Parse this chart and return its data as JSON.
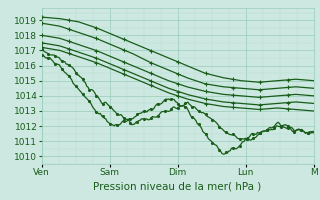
{
  "background_color": "#cce8e0",
  "plot_bg_color": "#cce8e0",
  "grid_major_color": "#99ccbb",
  "grid_minor_color": "#b8ddd4",
  "line_color": "#1a5c1a",
  "ylim": [
    1009.5,
    1019.8
  ],
  "yticks": [
    1010,
    1011,
    1012,
    1013,
    1014,
    1015,
    1016,
    1017,
    1018,
    1019
  ],
  "xlabel": "Pression niveau de la mer( hPa )",
  "xlabel_fontsize": 7.5,
  "tick_fontsize": 6.5,
  "day_labels": [
    "Ven",
    "Sam",
    "Dim",
    "Lun",
    "M"
  ],
  "day_positions": [
    0,
    0.25,
    0.5,
    0.75,
    1.0
  ],
  "series": [
    {
      "y": [
        1019.2,
        1019.1,
        1018.9,
        1018.5,
        1018.0,
        1017.5,
        1017.0,
        1016.5,
        1016.0,
        1015.5,
        1015.2,
        1015.0,
        1014.9,
        1015.0,
        1015.1,
        1015.0
      ],
      "straight": true,
      "dots": false
    },
    {
      "y": [
        1018.8,
        1018.6,
        1018.2,
        1017.8,
        1017.3,
        1016.8,
        1016.2,
        1015.7,
        1015.2,
        1014.8,
        1014.6,
        1014.5,
        1014.4,
        1014.5,
        1014.6,
        1014.5
      ],
      "straight": true,
      "dots": false
    },
    {
      "y": [
        1018.0,
        1017.8,
        1017.4,
        1017.0,
        1016.5,
        1016.0,
        1015.5,
        1015.0,
        1014.6,
        1014.3,
        1014.1,
        1014.0,
        1013.9,
        1014.0,
        1014.1,
        1014.0
      ],
      "straight": true,
      "dots": false
    },
    {
      "y": [
        1017.5,
        1017.3,
        1016.9,
        1016.5,
        1016.0,
        1015.5,
        1015.0,
        1014.5,
        1014.1,
        1013.8,
        1013.6,
        1013.5,
        1013.4,
        1013.5,
        1013.6,
        1013.5
      ],
      "straight": true,
      "dots": false
    },
    {
      "y": [
        1017.2,
        1017.0,
        1016.6,
        1016.2,
        1015.7,
        1015.2,
        1014.7,
        1014.2,
        1013.8,
        1013.5,
        1013.3,
        1013.2,
        1013.1,
        1013.2,
        1013.1,
        1013.0
      ],
      "straight": true,
      "dots": false
    },
    {
      "y": [
        1017.0,
        1016.5,
        1015.5,
        1014.0,
        1013.0,
        1012.2,
        1012.5,
        1013.0,
        1013.5,
        1012.8,
        1011.8,
        1011.2,
        1011.5,
        1012.0,
        1011.8,
        1011.5
      ],
      "straight": false,
      "dots": true
    },
    {
      "y": [
        1016.8,
        1016.0,
        1014.5,
        1013.0,
        1012.0,
        1012.5,
        1013.2,
        1013.8,
        1013.2,
        1011.5,
        1010.2,
        1010.8,
        1011.5,
        1012.2,
        1011.8,
        1011.5
      ],
      "straight": false,
      "dots": true
    }
  ]
}
